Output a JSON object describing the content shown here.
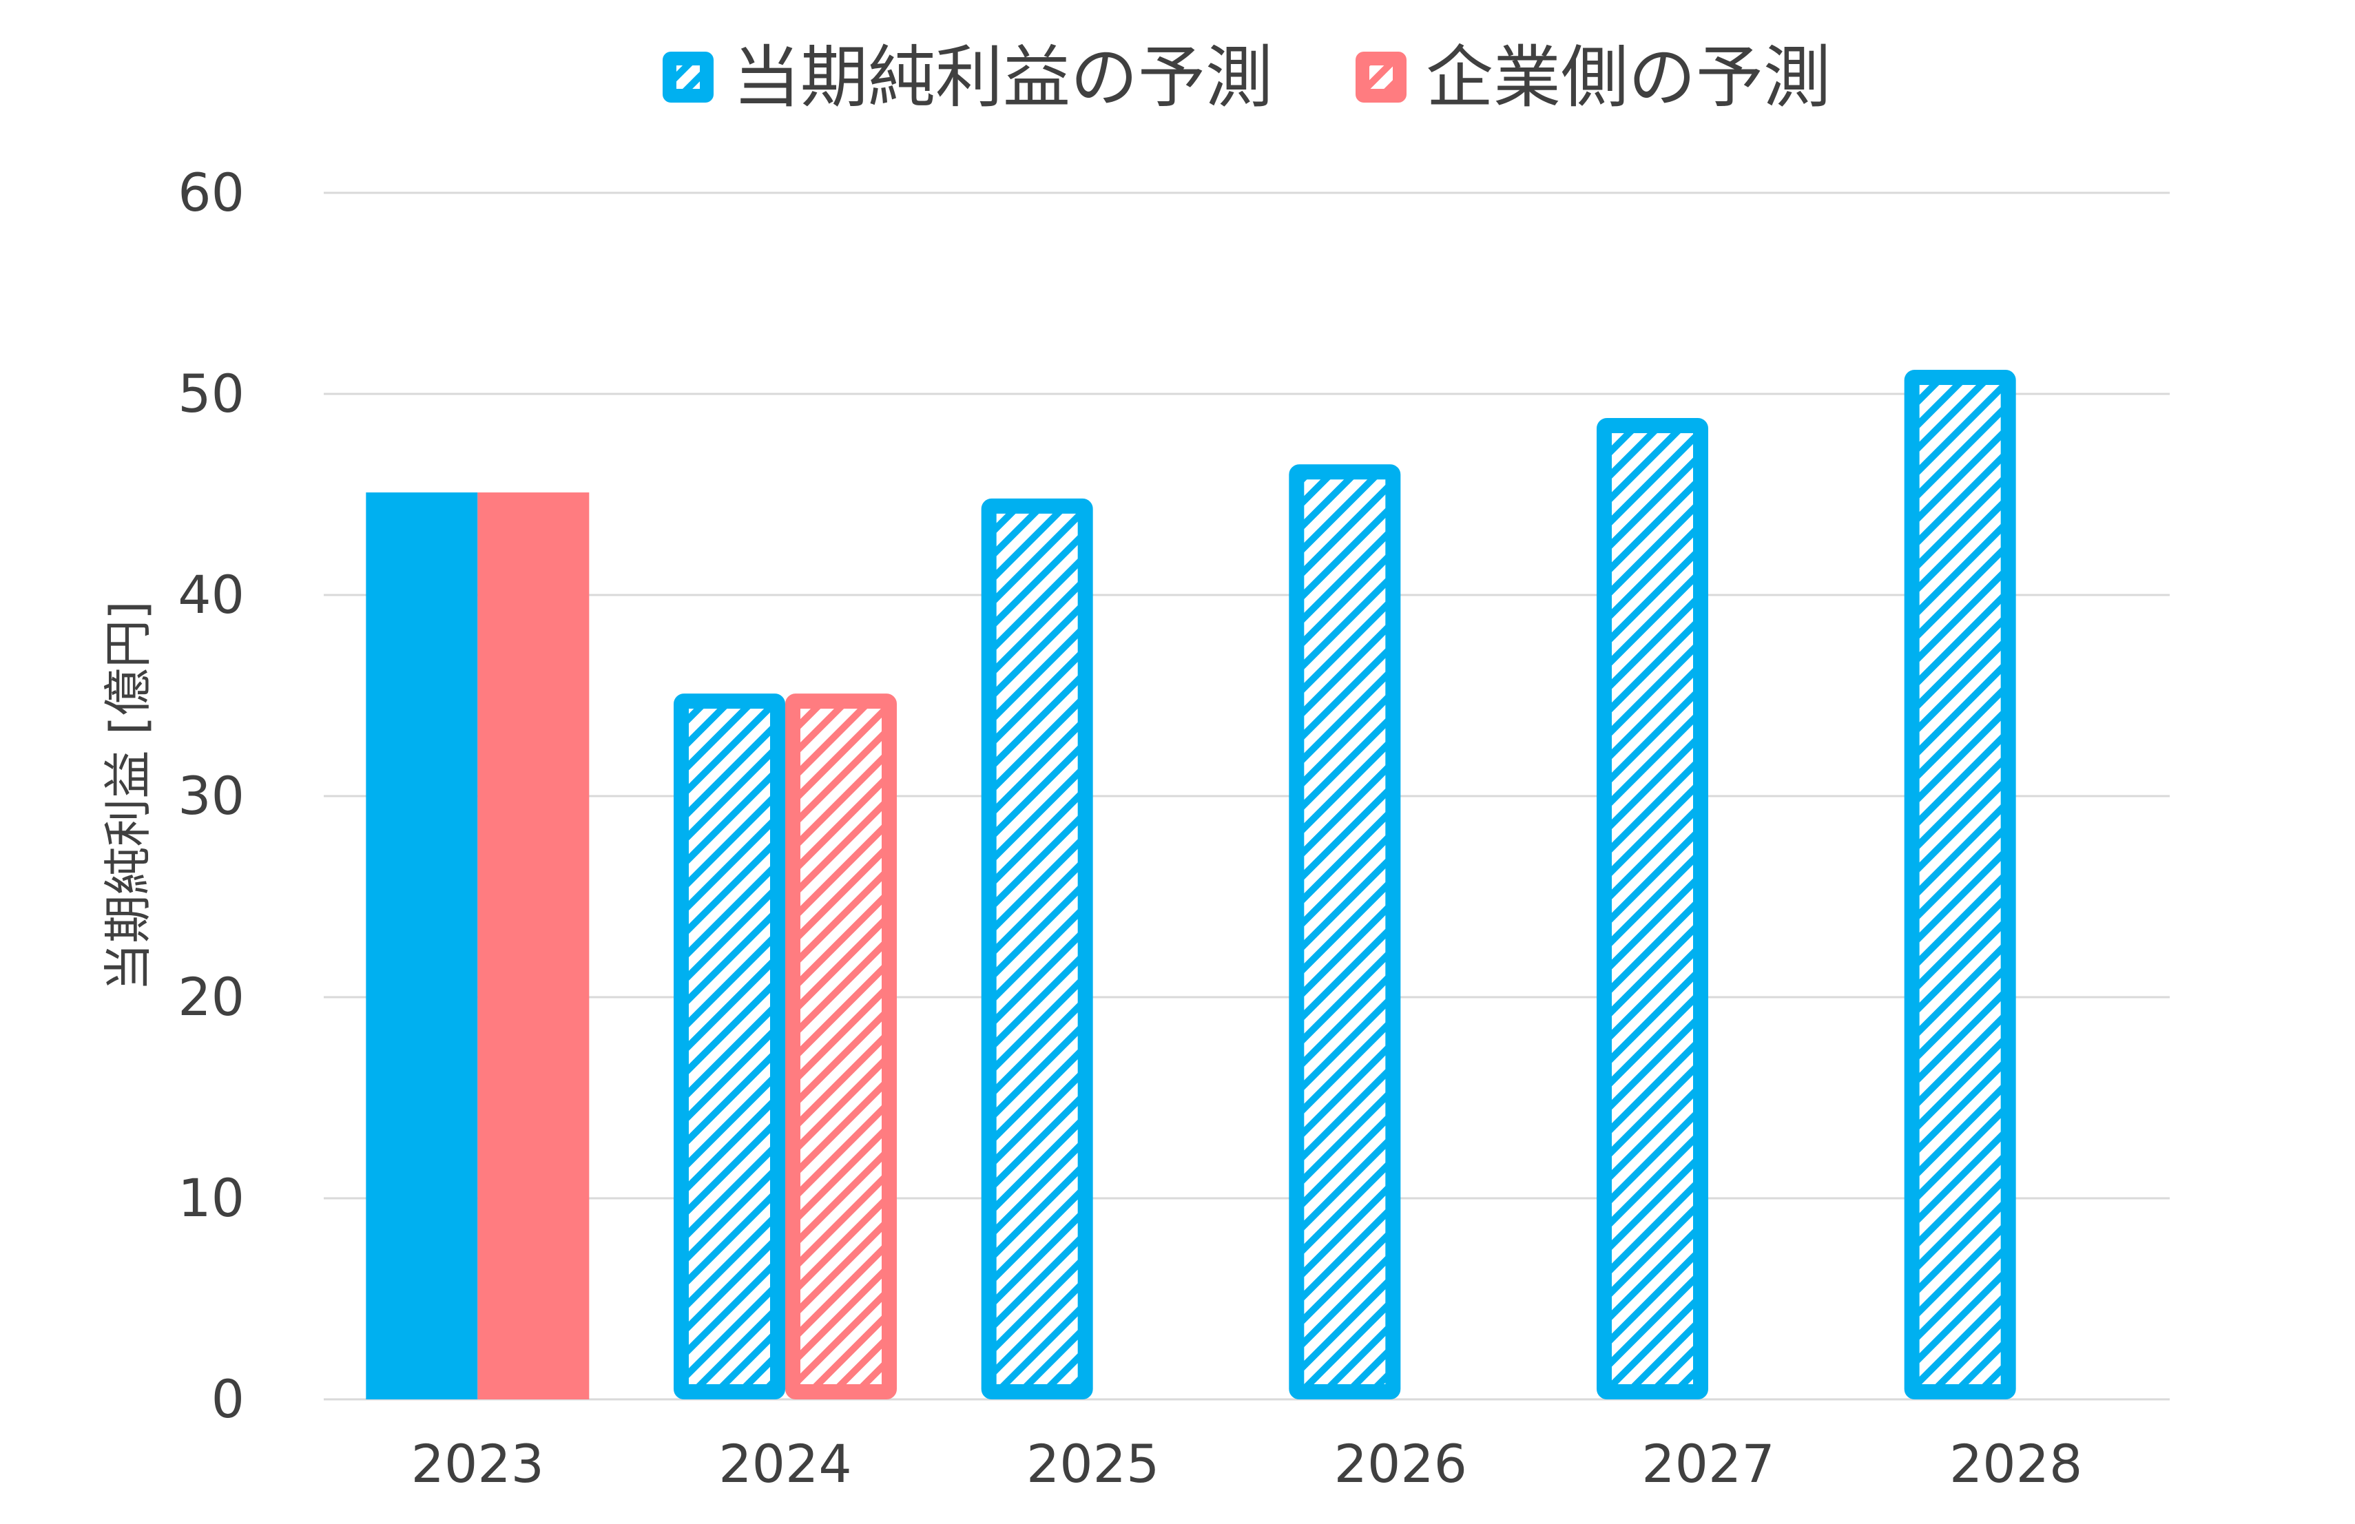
{
  "chart_data": {
    "type": "bar",
    "title": "",
    "xlabel": "",
    "ylabel": "当期純利益 [億円]",
    "ylim": [
      0,
      60
    ],
    "yticks": [
      0,
      10,
      20,
      30,
      40,
      50,
      60
    ],
    "grid": true,
    "legend_position": "top",
    "categories": [
      "2023",
      "2024",
      "2025",
      "2026",
      "2027",
      "2028"
    ],
    "series": [
      {
        "name": "当期純利益の予測",
        "color": "#00B0F0",
        "values": [
          45.1,
          35.1,
          44.8,
          46.5,
          48.8,
          51.2
        ],
        "fill_style": [
          "solid",
          "hatched",
          "hatched",
          "hatched",
          "hatched",
          "hatched"
        ]
      },
      {
        "name": "企業側の予測",
        "color": "#FF7C80",
        "values": [
          45.1,
          35.1,
          null,
          null,
          null,
          null
        ],
        "fill_style": [
          "solid",
          "hatched",
          null,
          null,
          null,
          null
        ]
      }
    ]
  }
}
